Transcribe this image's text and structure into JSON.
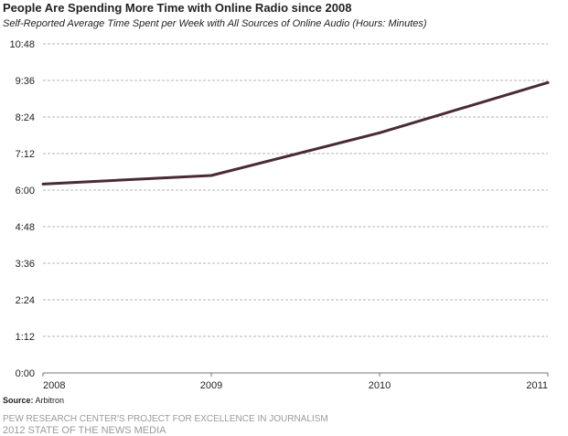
{
  "header": {
    "title": "People Are Spending More Time with Online Radio since 2008",
    "subtitle": "Self-Reported Average Time Spent per Week with All Sources of Online Audio (Hours: Minutes)"
  },
  "chart_data": {
    "type": "line",
    "title": "People Are Spending More Time with Online Radio since 2008",
    "subtitle": "Self-Reported Average Time Spent per Week with All Sources of Online Audio (Hours: Minutes)",
    "xlabel": "",
    "ylabel": "",
    "x": [
      "2008",
      "2009",
      "2010",
      "2011"
    ],
    "series": [
      {
        "values": [
          6.2,
          6.48,
          7.88,
          9.53
        ],
        "color": "#4a2a36"
      }
    ],
    "ylim": [
      0,
      10.8
    ],
    "yticks": [
      0,
      1.2,
      2.4,
      3.6,
      4.8,
      6.0,
      7.2,
      8.4,
      9.6,
      10.8
    ],
    "ytick_labels": [
      "0:00",
      "1:12",
      "2:24",
      "3:36",
      "4:48",
      "6:00",
      "7:12",
      "8:24",
      "9:36",
      "10:48"
    ],
    "xtick_labels": [
      "2008",
      "2009",
      "2010",
      "2011"
    ],
    "grid": "horizontal dashed",
    "legend": "none"
  },
  "footer": {
    "source_label": "Source:",
    "source_value": "Arbitron",
    "org_line": "PEW RESEARCH CENTER'S PROJECT FOR EXCELLENCE IN JOURNALISM",
    "report_line": "2012 STATE OF THE NEWS MEDIA"
  }
}
